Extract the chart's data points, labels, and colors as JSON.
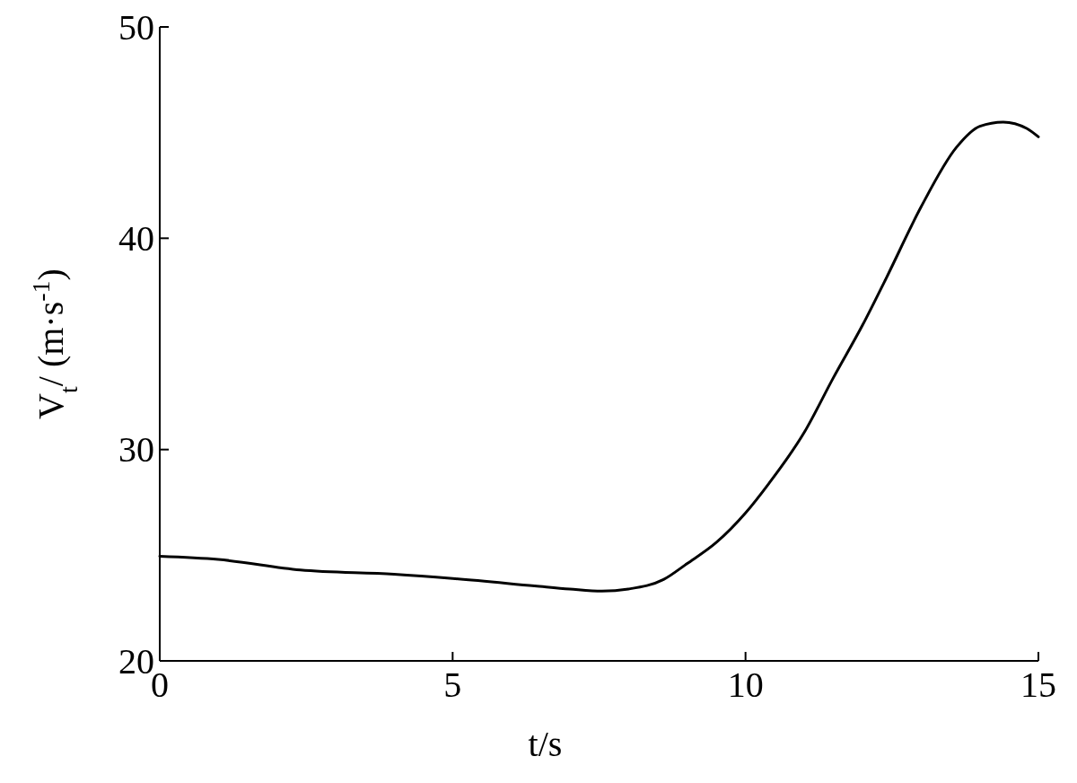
{
  "chart_data": {
    "type": "line",
    "xlabel": "t/s",
    "ylabel": "V$_{t}$/ (m·s$^{-1}$)",
    "xlim": [
      0,
      15
    ],
    "ylim": [
      20,
      50
    ],
    "xticks": [
      0,
      5,
      10,
      15
    ],
    "yticks": [
      20,
      30,
      40,
      50
    ],
    "grid": false,
    "marker": "none",
    "line_style": "solid",
    "series": [
      {
        "color": "#000000",
        "x": [
          0,
          1,
          2.4,
          4,
          5,
          6.4,
          7,
          7.55,
          8,
          8.6,
          9,
          9.5,
          10,
          10.4,
          11,
          11.5,
          12,
          12.4,
          13,
          13.6,
          14,
          14.4,
          14.8,
          15
        ],
        "values": [
          24.95,
          24.8,
          24.3,
          24.1,
          23.9,
          23.55,
          23.4,
          23.3,
          23.4,
          23.85,
          24.6,
          25.6,
          27.0,
          28.4,
          30.8,
          33.4,
          35.9,
          38.1,
          41.5,
          44.3,
          45.3,
          45.5,
          45.2,
          44.8
        ]
      }
    ]
  }
}
